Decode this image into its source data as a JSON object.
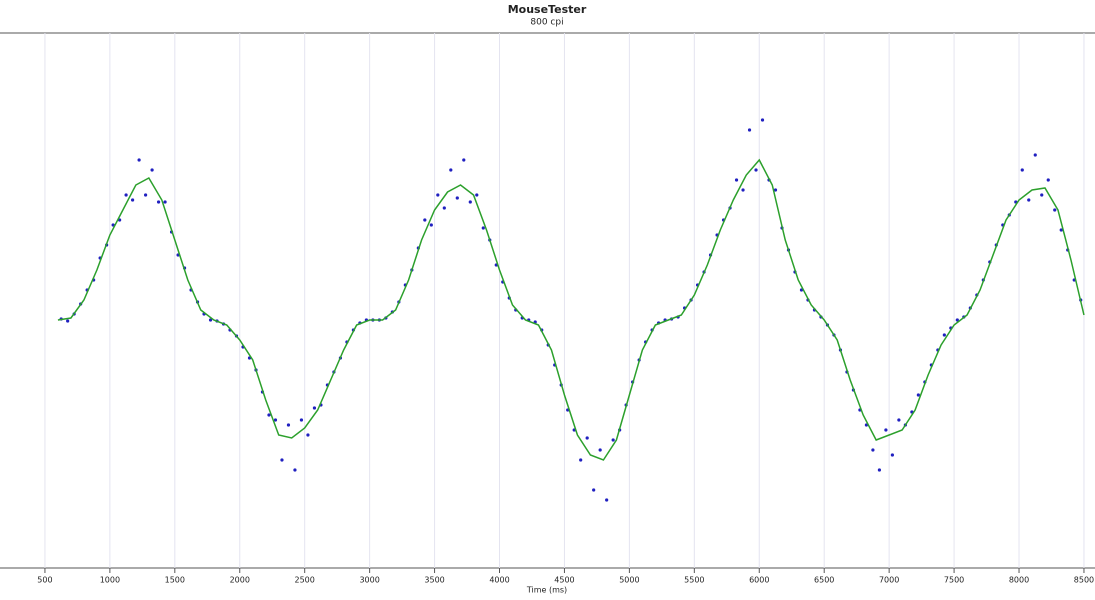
{
  "chart_data": {
    "type": "scatter",
    "title": "MouseTester",
    "subtitle": "800 cpi",
    "xlabel": "Time (ms)",
    "xlim": [
      154,
      8585
    ],
    "ylim": [
      -248,
      287
    ],
    "xticks": [
      500,
      1000,
      1500,
      2000,
      2500,
      3000,
      3500,
      4000,
      4500,
      5000,
      5500,
      6000,
      6500,
      7000,
      7500,
      8000,
      8500
    ],
    "grid": true,
    "series": [
      {
        "type": "scatter",
        "color": "#2020c0",
        "x": [
          625,
          675,
          725,
          775,
          825,
          875,
          925,
          975,
          1025,
          1075,
          1125,
          1175,
          1225,
          1275,
          1325,
          1375,
          1425,
          1475,
          1525,
          1575,
          1625,
          1675,
          1725,
          1775,
          1825,
          1875,
          1925,
          1975,
          2025,
          2075,
          2125,
          2175,
          2225,
          2275,
          2325,
          2375,
          2425,
          2475,
          2525,
          2575,
          2625,
          2675,
          2725,
          2775,
          2825,
          2875,
          2925,
          2975,
          3025,
          3075,
          3125,
          3175,
          3225,
          3275,
          3325,
          3375,
          3425,
          3475,
          3525,
          3575,
          3625,
          3675,
          3725,
          3775,
          3825,
          3875,
          3925,
          3975,
          4025,
          4075,
          4125,
          4175,
          4225,
          4275,
          4325,
          4375,
          4425,
          4475,
          4525,
          4575,
          4625,
          4675,
          4725,
          4775,
          4825,
          4875,
          4925,
          4975,
          5025,
          5075,
          5125,
          5175,
          5225,
          5275,
          5325,
          5375,
          5425,
          5475,
          5525,
          5575,
          5625,
          5675,
          5725,
          5775,
          5825,
          5875,
          5925,
          5975,
          6025,
          6075,
          6125,
          6175,
          6225,
          6275,
          6325,
          6375,
          6425,
          6475,
          6525,
          6575,
          6625,
          6675,
          6725,
          6775,
          6825,
          6875,
          6925,
          6975,
          7025,
          7075,
          7125,
          7175,
          7225,
          7275,
          7325,
          7375,
          7425,
          7475,
          7525,
          7575,
          7625,
          7675,
          7725,
          7775,
          7825,
          7875,
          7925,
          7975,
          8025,
          8075,
          8125,
          8175,
          8225,
          8275,
          8325,
          8375,
          8425,
          8475
        ],
        "values": [
          1,
          -1,
          6,
          16,
          30,
          40,
          62,
          75,
          95,
          100,
          125,
          120,
          160,
          125,
          150,
          118,
          118,
          88,
          65,
          52,
          30,
          18,
          6,
          0,
          -1,
          -4,
          -10,
          -16,
          -27,
          -38,
          -50,
          -72,
          -95,
          -100,
          -140,
          -105,
          -150,
          -100,
          -115,
          -88,
          -85,
          -65,
          -52,
          -38,
          -22,
          -10,
          -3,
          0,
          0,
          0,
          2,
          8,
          18,
          35,
          50,
          72,
          100,
          95,
          125,
          112,
          150,
          122,
          160,
          118,
          125,
          92,
          80,
          55,
          38,
          22,
          10,
          2,
          0,
          -2,
          -10,
          -25,
          -45,
          -65,
          -90,
          -110,
          -140,
          -118,
          -170,
          -130,
          -180,
          -120,
          -110,
          -85,
          -62,
          -40,
          -22,
          -10,
          -3,
          0,
          1,
          3,
          12,
          20,
          35,
          48,
          65,
          85,
          100,
          112,
          140,
          130,
          190,
          150,
          200,
          140,
          130,
          92,
          70,
          48,
          30,
          20,
          10,
          3,
          -5,
          -15,
          -30,
          -52,
          -70,
          -90,
          -105,
          -130,
          -150,
          -110,
          -135,
          -100,
          -105,
          -92,
          -75,
          -62,
          -45,
          -30,
          -15,
          -8,
          0,
          3,
          12,
          25,
          40,
          58,
          75,
          95,
          105,
          118,
          150,
          120,
          165,
          125,
          140,
          110,
          90,
          70,
          40,
          20
        ]
      },
      {
        "type": "line",
        "color": "#2ca02c",
        "x": [
          600,
          700,
          800,
          900,
          1000,
          1100,
          1200,
          1300,
          1400,
          1500,
          1600,
          1700,
          1800,
          1900,
          2000,
          2100,
          2200,
          2300,
          2400,
          2500,
          2600,
          2700,
          2800,
          2900,
          3000,
          3100,
          3200,
          3300,
          3400,
          3500,
          3600,
          3700,
          3800,
          3900,
          4000,
          4100,
          4200,
          4300,
          4400,
          4500,
          4600,
          4700,
          4800,
          4900,
          5000,
          5100,
          5200,
          5300,
          5400,
          5500,
          5600,
          5700,
          5800,
          5900,
          6000,
          6100,
          6200,
          6300,
          6400,
          6500,
          6600,
          6700,
          6800,
          6900,
          7000,
          7100,
          7200,
          7300,
          7400,
          7500,
          7600,
          7700,
          7800,
          7900,
          8000,
          8100,
          8200,
          8300,
          8400,
          8500
        ],
        "values": [
          0,
          2,
          20,
          50,
          85,
          110,
          135,
          142,
          120,
          80,
          40,
          10,
          0,
          -5,
          -20,
          -40,
          -80,
          -115,
          -118,
          -108,
          -90,
          -60,
          -30,
          -5,
          0,
          0,
          10,
          40,
          80,
          110,
          128,
          135,
          125,
          90,
          50,
          15,
          0,
          -5,
          -30,
          -75,
          -115,
          -135,
          -140,
          -120,
          -75,
          -30,
          -5,
          0,
          5,
          25,
          55,
          90,
          120,
          145,
          160,
          135,
          80,
          40,
          15,
          0,
          -20,
          -60,
          -95,
          -120,
          -115,
          -110,
          -90,
          -55,
          -25,
          -5,
          5,
          30,
          65,
          100,
          120,
          130,
          132,
          110,
          60,
          5
        ]
      }
    ]
  }
}
